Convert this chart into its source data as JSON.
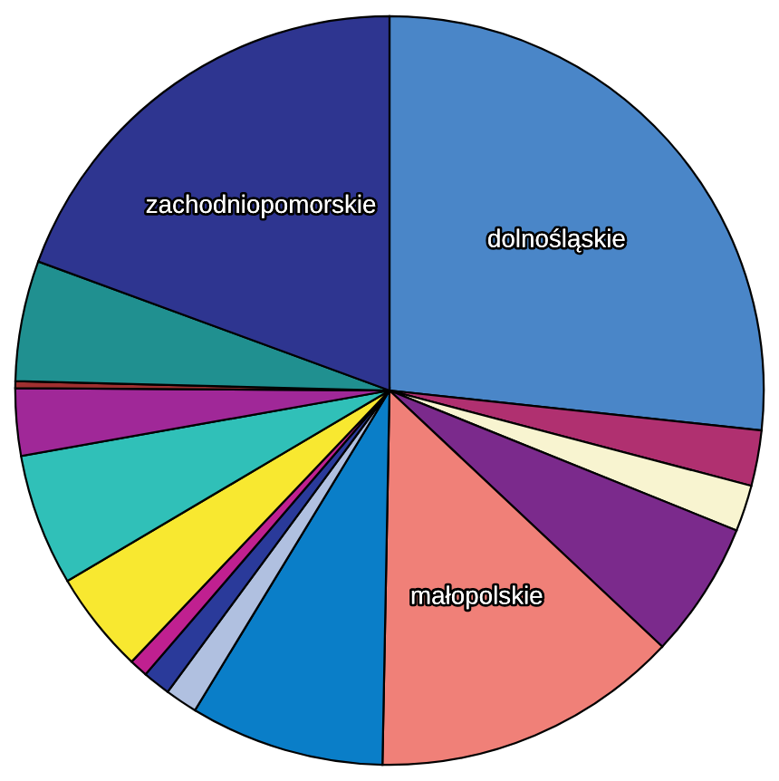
{
  "chart_data": {
    "type": "pie",
    "categories": [
      "dolnośląskie",
      null,
      null,
      null,
      "małopolskie",
      null,
      null,
      null,
      null,
      null,
      null,
      null,
      null,
      null,
      "zachodniopomorskie"
    ],
    "values": [
      26.7,
      2.4,
      2.0,
      5.9,
      13.3,
      8.4,
      1.4,
      1.2,
      0.8,
      4.4,
      5.7,
      2.9,
      0.3,
      5.2,
      19.4
    ],
    "colors": [
      "#4a86c8",
      "#b03070",
      "#f8f4d0",
      "#7b2a8c",
      "#f08078",
      "#0a7ec8",
      "#b0c0e0",
      "#2a3a9a",
      "#c02090",
      "#f8e830",
      "#30c0b8",
      "#a02898",
      "#a03030",
      "#209090",
      "#2e3590"
    ]
  }
}
